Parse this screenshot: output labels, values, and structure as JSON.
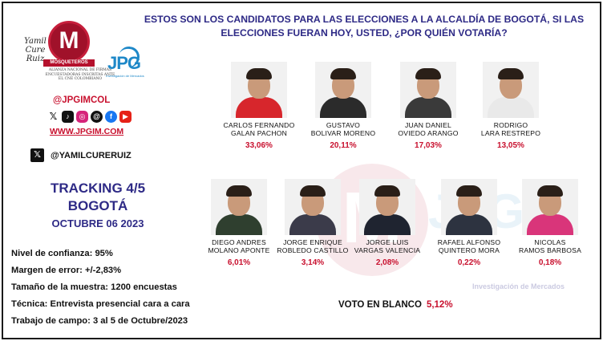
{
  "header": {
    "title": "ESTOS SON LOS CANDIDATOS PARA LAS ELECCIONES A LA ALCALDÍA DE BOGOTÁ, SI LAS ELECCIONES FUERAN HOY, USTED, ¿POR QUIÉN VOTARÍA?"
  },
  "branding": {
    "signature": "Yamil Cure Ruiz",
    "logo_letter": "M",
    "logo_ribbon": "MOSQUETEROS",
    "logo_caption": "ALIANZA NACIONAL DE FIRMAS ENCUESTADORAS INSCRITAS ANTE EL CNE COLOMBIANO",
    "jpg_logo": "JPG",
    "jpg_caption": "Investigación de Mercados",
    "handle": "@JPGIMCOL",
    "social_icons": [
      "x-icon",
      "tiktok-icon",
      "instagram-icon",
      "threads-icon",
      "facebook-icon",
      "youtube-icon"
    ],
    "website": "WWW.JPGIM.COM",
    "x_handle": "@YAMILCURERUIZ",
    "watermark_text": "Investigación de Mercados"
  },
  "tracking": {
    "title_line1": "TRACKING 4/5",
    "title_line2": "BOGOTÁ",
    "date": "OCTUBRE 06 2023"
  },
  "facts": [
    "Nivel de confianza: 95%",
    "Margen de error: +/-2,83%",
    "Tamaño de la muestra: 1200 encuestas",
    "Técnica: Entrevista presencial cara a cara",
    "Trabajo de campo: 3 al 5 de Octubre/2023"
  ],
  "candidates_row1": [
    {
      "line1": "CARLOS FERNANDO",
      "line2": "GALAN PACHON",
      "pct": "33,06%",
      "value": 33.06,
      "shirt": "#d7262c"
    },
    {
      "line1": "GUSTAVO",
      "line2": "BOLIVAR MORENO",
      "pct": "20,11%",
      "value": 20.11,
      "shirt": "#2b2b2b"
    },
    {
      "line1": "JUAN DANIEL",
      "line2": "OVIEDO ARANGO",
      "pct": "17,03%",
      "value": 17.03,
      "shirt": "#3a3a3a"
    },
    {
      "line1": "RODRIGO",
      "line2": "LARA RESTREPO",
      "pct": "13,05%",
      "value": 13.05,
      "shirt": "#e9e9e9"
    }
  ],
  "candidates_row2": [
    {
      "line1": "DIEGO ANDRES",
      "line2": "MOLANO APONTE",
      "pct": "6,01%",
      "value": 6.01,
      "shirt": "#2f3f2f"
    },
    {
      "line1": "JORGE ENRIQUE",
      "line2": "ROBLEDO CASTILLO",
      "pct": "3,14%",
      "value": 3.14,
      "shirt": "#3b3b4a"
    },
    {
      "line1": "JORGE LUIS",
      "line2": "VARGAS VALENCIA",
      "pct": "2,08%",
      "value": 2.08,
      "shirt": "#1f2430"
    },
    {
      "line1": "RAFAEL ALFONSO",
      "line2": "QUINTERO MORA",
      "pct": "0,22%",
      "value": 0.22,
      "shirt": "#2d3340"
    },
    {
      "line1": "NICOLAS",
      "line2": "RAMOS BARBOSA",
      "pct": "0,18%",
      "value": 0.18,
      "shirt": "#d9357a"
    }
  ],
  "blank_vote": {
    "label": "VOTO EN BLANCO",
    "pct": "5,12%"
  }
}
